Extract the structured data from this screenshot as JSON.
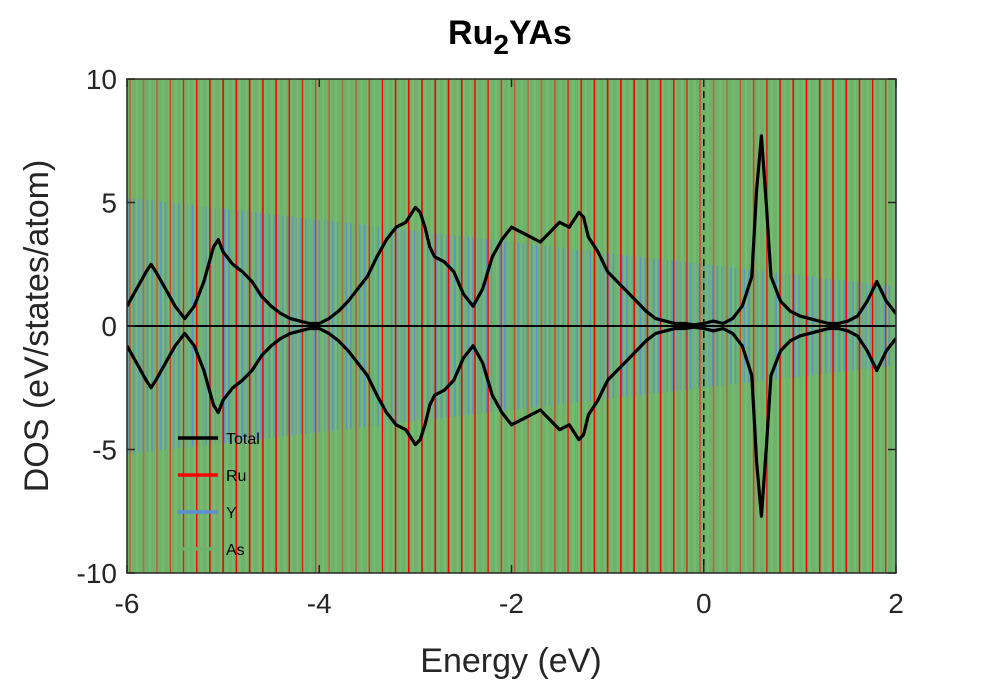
{
  "chart_data": {
    "type": "line",
    "title": "Ru",
    "title_subscript": "2",
    "title_suffix": "YAs",
    "xlabel": "Energy (eV)",
    "ylabel": "DOS (eV/states/atom)",
    "xlim": [
      -6,
      2
    ],
    "ylim": [
      -10,
      10
    ],
    "xticks": [
      -6,
      -4,
      -2,
      0,
      2
    ],
    "yticks": [
      -10,
      -5,
      0,
      5,
      10
    ],
    "xtick_labels": [
      "-6",
      "-4",
      "-2",
      "0",
      "2"
    ],
    "ytick_labels": [
      "-10",
      "-5",
      "0",
      "5",
      "10"
    ],
    "fermi_level": 0,
    "grid": false,
    "legend_position": "lower-left",
    "colors": {
      "total": "#000000",
      "ru": "#ff0000",
      "y": "#5b8fd6",
      "as": "#6fb36a"
    },
    "series": [
      {
        "name": "Total",
        "color": "#000000",
        "spin_down_mirrored": true,
        "x": [
          -6.0,
          -5.9,
          -5.8,
          -5.75,
          -5.7,
          -5.6,
          -5.5,
          -5.4,
          -5.3,
          -5.2,
          -5.1,
          -5.05,
          -5.0,
          -4.9,
          -4.8,
          -4.7,
          -4.6,
          -4.5,
          -4.4,
          -4.3,
          -4.2,
          -4.1,
          -4.0,
          -3.9,
          -3.8,
          -3.7,
          -3.6,
          -3.5,
          -3.4,
          -3.3,
          -3.2,
          -3.1,
          -3.0,
          -2.95,
          -2.9,
          -2.85,
          -2.8,
          -2.7,
          -2.6,
          -2.5,
          -2.4,
          -2.3,
          -2.2,
          -2.1,
          -2.0,
          -1.9,
          -1.8,
          -1.7,
          -1.6,
          -1.5,
          -1.4,
          -1.3,
          -1.25,
          -1.2,
          -1.1,
          -1.0,
          -0.9,
          -0.8,
          -0.7,
          -0.6,
          -0.5,
          -0.4,
          -0.3,
          -0.2,
          -0.1,
          0.0,
          0.1,
          0.2,
          0.3,
          0.4,
          0.5,
          0.55,
          0.6,
          0.65,
          0.7,
          0.8,
          0.9,
          1.0,
          1.1,
          1.2,
          1.3,
          1.4,
          1.5,
          1.6,
          1.7,
          1.8,
          1.9,
          2.0
        ],
        "values": [
          0.8,
          1.5,
          2.2,
          2.5,
          2.2,
          1.5,
          0.8,
          0.3,
          0.8,
          1.8,
          3.2,
          3.5,
          3.0,
          2.5,
          2.2,
          1.8,
          1.2,
          0.8,
          0.5,
          0.3,
          0.2,
          0.1,
          0.1,
          0.3,
          0.6,
          1.0,
          1.5,
          2.0,
          2.8,
          3.5,
          4.0,
          4.2,
          4.8,
          4.6,
          4.0,
          3.2,
          2.8,
          2.6,
          2.2,
          1.3,
          0.8,
          1.5,
          2.8,
          3.5,
          4.0,
          3.8,
          3.6,
          3.4,
          3.8,
          4.2,
          4.0,
          4.6,
          4.4,
          3.6,
          3.0,
          2.2,
          1.8,
          1.4,
          1.0,
          0.6,
          0.3,
          0.2,
          0.1,
          0.1,
          0.05,
          0.1,
          0.2,
          0.1,
          0.3,
          0.8,
          2.0,
          5.5,
          7.7,
          5.0,
          2.0,
          1.0,
          0.6,
          0.4,
          0.3,
          0.2,
          0.1,
          0.1,
          0.2,
          0.4,
          1.0,
          1.8,
          1.0,
          0.5
        ]
      },
      {
        "name": "Ru",
        "color": "#ff0000"
      },
      {
        "name": "Y",
        "color": "#5b8fd6"
      },
      {
        "name": "As",
        "color": "#6fb36a"
      }
    ]
  }
}
